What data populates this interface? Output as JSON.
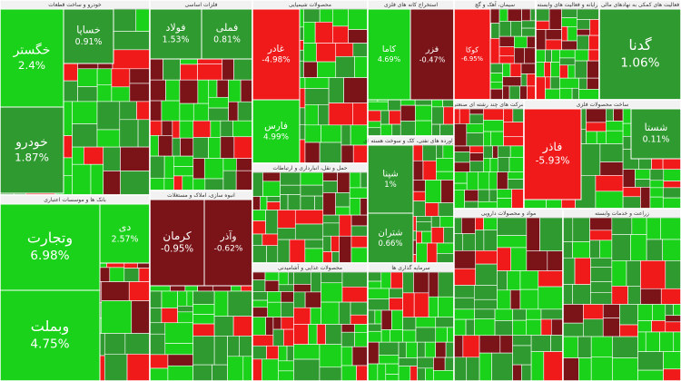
{
  "chart_data": {
    "type": "treemap",
    "colors": {
      "strong_up": "#19d219",
      "up": "#2f9a2f",
      "down": "#7a1418",
      "strong_down": "#f01a1a",
      "header": "#f2f2f2"
    },
    "sectors": [
      {
        "name": "خودرو و ساخت قطعات",
        "tiles": [
          {
            "name": "خگستر",
            "value": 2.4,
            "value_label": "2.4%"
          },
          {
            "name": "خودرو",
            "value": 1.87,
            "value_label": "1.87%"
          },
          {
            "name": "خساپا",
            "value": 0.91,
            "value_label": "0.91%"
          }
        ]
      },
      {
        "name": "بانک ها و موسسات اعتباری",
        "tiles": [
          {
            "name": "وتجارت",
            "value": 6.98,
            "value_label": "6.98%"
          },
          {
            "name": "وبملت",
            "value": 4.75,
            "value_label": "4.75%"
          },
          {
            "name": "دی",
            "value": 2.57,
            "value_label": "2.57%"
          }
        ]
      },
      {
        "name": "فلزات اساسی",
        "tiles": [
          {
            "name": "فولاد",
            "value": 1.53,
            "value_label": "1.53%"
          },
          {
            "name": "فملی",
            "value": 0.81,
            "value_label": "0.81%"
          }
        ]
      },
      {
        "name": "انبوه سازی، املاک و مستغلات",
        "tiles": [
          {
            "name": "کرمان",
            "value": -0.95,
            "value_label": "-0.95%"
          },
          {
            "name": "وآذر",
            "value": -0.62,
            "value_label": "-0.62%"
          }
        ]
      },
      {
        "name": "محصولات شیمیایی",
        "tiles": [
          {
            "name": "غادر",
            "value": -4.98,
            "value_label": "-4.98%"
          },
          {
            "name": "فارس",
            "value": 4.99,
            "value_label": "4.99%"
          }
        ]
      },
      {
        "name": "حمل و نقل، انبارداری و ارتباطات",
        "tiles": []
      },
      {
        "name": "محصولات غذایی و آشامیدنی",
        "tiles": []
      },
      {
        "name": "استخراج کانه های فلزی",
        "tiles": [
          {
            "name": "کاما",
            "value": 4.69,
            "value_label": "4.69%"
          },
          {
            "name": "فزر",
            "value": -0.47,
            "value_label": "-0.47%"
          }
        ]
      },
      {
        "name": "فراورده های نفتی، کک و سوخت هسته ای",
        "tiles": [
          {
            "name": "شپنا",
            "value": 1,
            "value_label": "1%"
          },
          {
            "name": "شتران",
            "value": 0.66,
            "value_label": "0.66%"
          }
        ]
      },
      {
        "name": "سرمایه گذاری ها",
        "tiles": []
      },
      {
        "name": "سیمان، آهک و گچ",
        "tiles": [
          {
            "name": "کوکا",
            "value": -6.95,
            "value_label": "-6.95%"
          }
        ]
      },
      {
        "name": "رایانه و فعالیت های وابسته",
        "tiles": []
      },
      {
        "name": "فعالیت های کمکی به نهادهای مالی",
        "tiles": [
          {
            "name": "گدنا",
            "value": 1.06,
            "value_label": "1.06%"
          }
        ]
      },
      {
        "name": "شرکت های چند رشته ای صنعتی",
        "tiles": []
      },
      {
        "name": "ساخت محصولات فلزی",
        "tiles": [
          {
            "name": "فاذر",
            "value": -5.93,
            "value_label": "-5.93%"
          },
          {
            "name": "شستا",
            "value": 0.11,
            "value_label": "0.11%"
          }
        ]
      },
      {
        "name": "مواد و محصولات دارویی",
        "tiles": []
      },
      {
        "name": "زراعت و خدمات وابسته",
        "tiles": []
      }
    ]
  }
}
